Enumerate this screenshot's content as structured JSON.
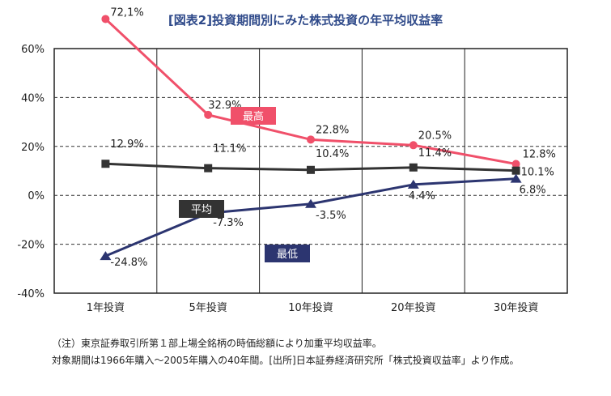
{
  "chart_data": {
    "type": "line",
    "title": "[図表2]投資期間別にみた株式投資の年平均収益率",
    "categories": [
      "1年投資",
      "5年投資",
      "10年投資",
      "20年投資",
      "30年投資"
    ],
    "y_ticks": [
      "60%",
      "40%",
      "20%",
      "0%",
      "-20%",
      "-40%"
    ],
    "ylim": [
      -40,
      60
    ],
    "grid": "dashed horizontal, solid vertical",
    "series": [
      {
        "name": "最高",
        "color": "#f0506a",
        "marker": "circle",
        "values": [
          72.1,
          32.9,
          22.8,
          20.5,
          12.8
        ],
        "labels": [
          "72,1%",
          "32.9%",
          "22.8%",
          "20.5%",
          "12.8%"
        ]
      },
      {
        "name": "平均",
        "color": "#333333",
        "marker": "square",
        "values": [
          12.9,
          11.1,
          10.4,
          11.4,
          10.1
        ],
        "labels": [
          "12.9%",
          "11.1%",
          "10.4%",
          "11.4%",
          "10.1%"
        ]
      },
      {
        "name": "最低",
        "color": "#2c3570",
        "marker": "triangle",
        "values": [
          -24.8,
          -7.3,
          -3.5,
          4.4,
          6.8
        ],
        "labels": [
          "-24.8%",
          "-7.3%",
          "-3.5%",
          "4.4%",
          "6.8%"
        ]
      }
    ]
  },
  "notes": {
    "line1": "（注）東京証券取引所第１部上場全銘柄の時価総額により加重平均収益率。",
    "line2": "対象期間は1966年購入～2005年購入の40年間。[出所]日本証券経済研究所「株式投資収益率」より作成。"
  }
}
